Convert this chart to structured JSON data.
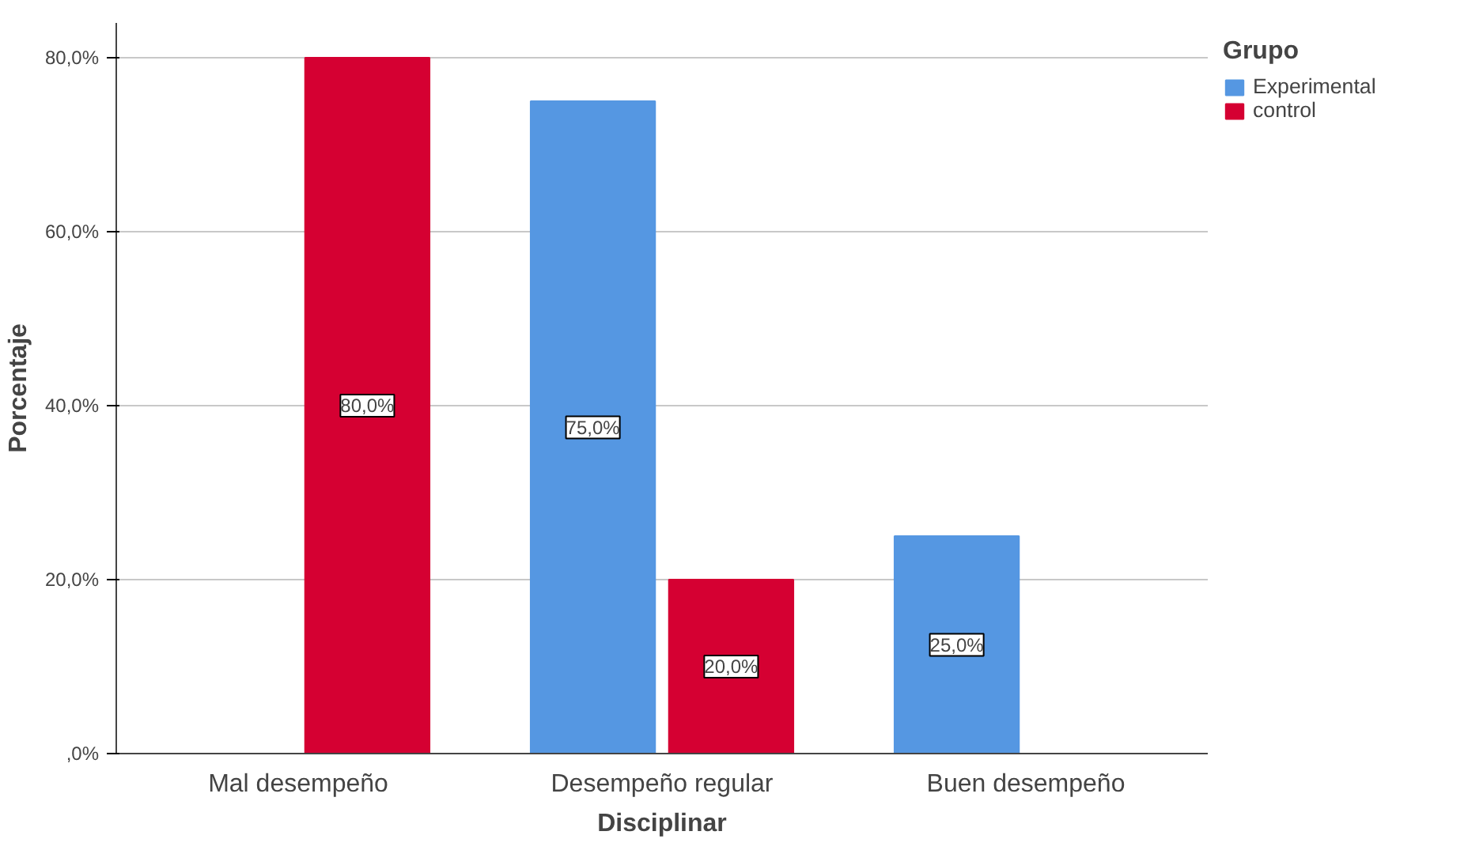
{
  "chart_data": {
    "type": "bar",
    "xlabel": "Disciplinar",
    "ylabel": "Porcentaje",
    "legend_title": "Grupo",
    "categories": [
      "Mal desempeño",
      "Desempeño regular",
      "Buen desempeño"
    ],
    "series": [
      {
        "name": "Experimental",
        "color": "#5597e2",
        "values": [
          0,
          75,
          25
        ],
        "value_labels": [
          null,
          "75,0%",
          "25,0%"
        ]
      },
      {
        "name": "control",
        "color": "#d50032",
        "values": [
          80,
          20,
          0
        ],
        "value_labels": [
          "80,0%",
          "20,0%",
          null
        ]
      }
    ],
    "ylim": [
      0,
      84
    ],
    "yticks": [
      {
        "value": 0,
        "label": ",0%"
      },
      {
        "value": 20,
        "label": "20,0%"
      },
      {
        "value": 40,
        "label": "40,0%"
      },
      {
        "value": 60,
        "label": "60,0%"
      },
      {
        "value": 80,
        "label": "80,0%"
      }
    ],
    "grid": "y",
    "legend": "top right"
  }
}
